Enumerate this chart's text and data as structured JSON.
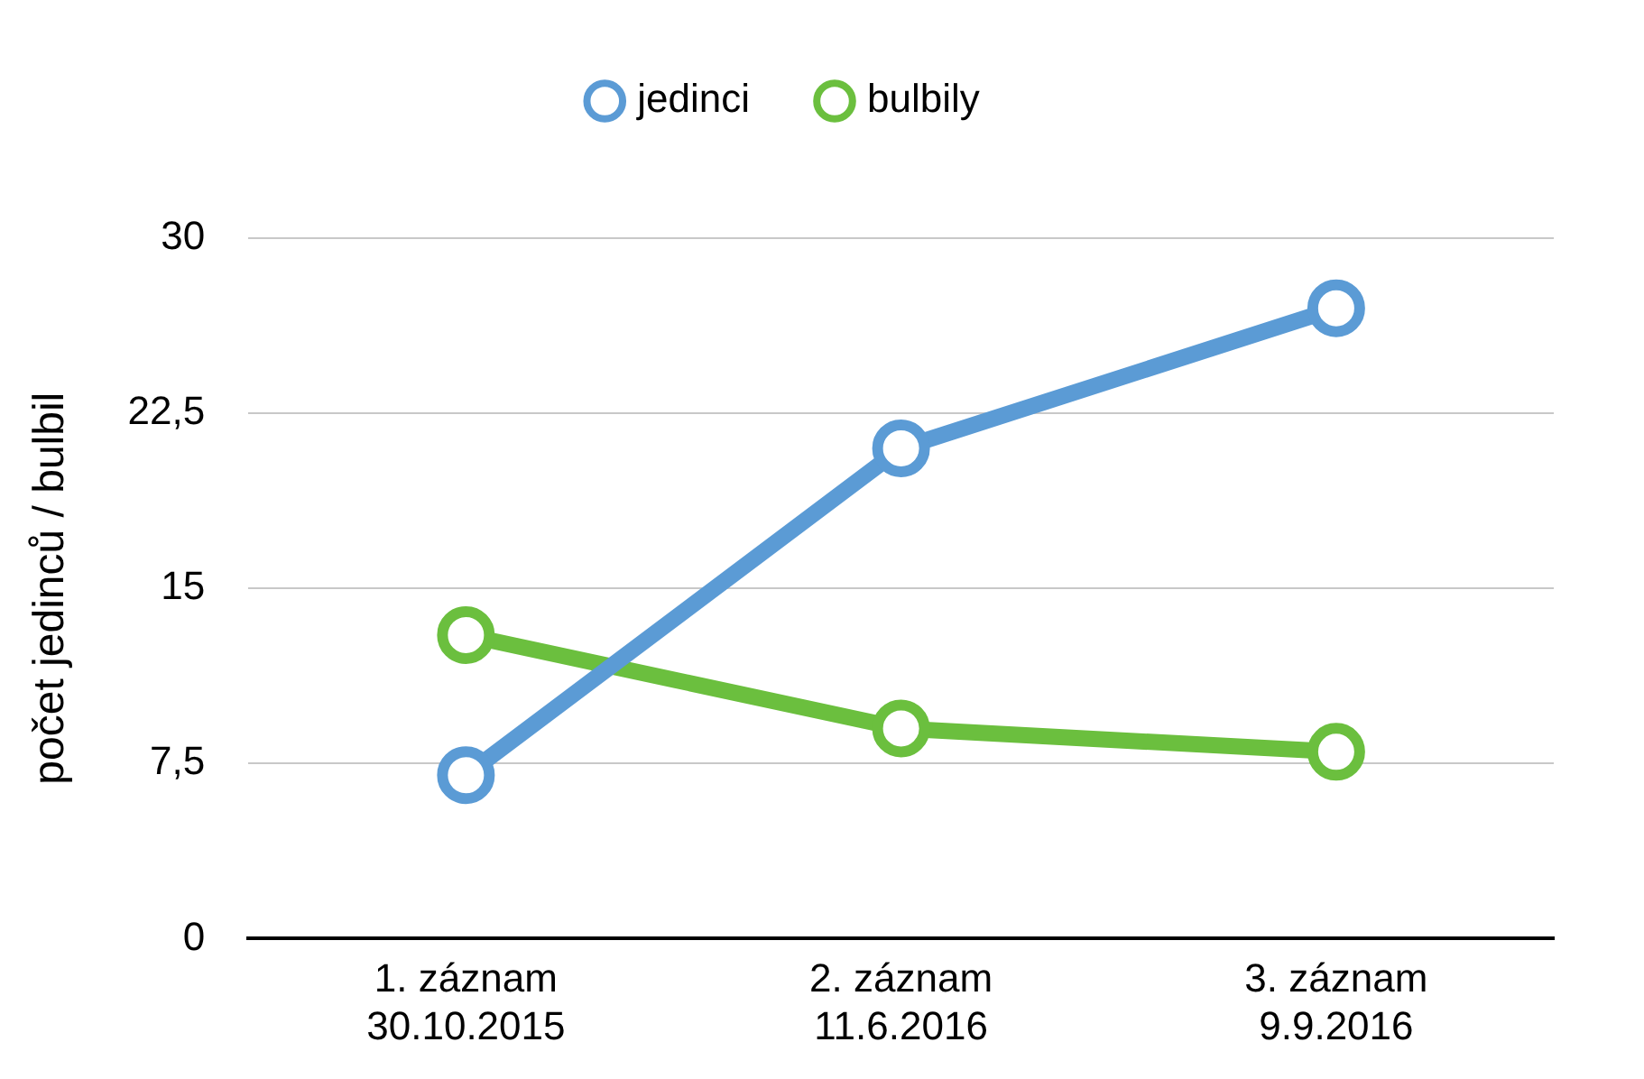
{
  "chart_data": {
    "type": "line",
    "ylabel": "počet jedinců / bulbil",
    "categories": [
      "1. záznam\n30.10.2015",
      "2. záznam\n11.6.2016",
      "3. záznam\n9.9.2016"
    ],
    "series": [
      {
        "name": "jedinci",
        "color": "#5b9bd5",
        "values": [
          7,
          21,
          27
        ]
      },
      {
        "name": "bulbily",
        "color": "#6bbf3e",
        "values": [
          13,
          9,
          8
        ]
      }
    ],
    "ylim": [
      0,
      30
    ],
    "yticks": [
      0,
      {
        "value": 7.5,
        "label": "7,5"
      },
      15,
      {
        "value": 22.5,
        "label": "22,5"
      },
      30
    ],
    "grid": "y",
    "legend": "top",
    "marker": "circle",
    "line_style": "solid"
  }
}
